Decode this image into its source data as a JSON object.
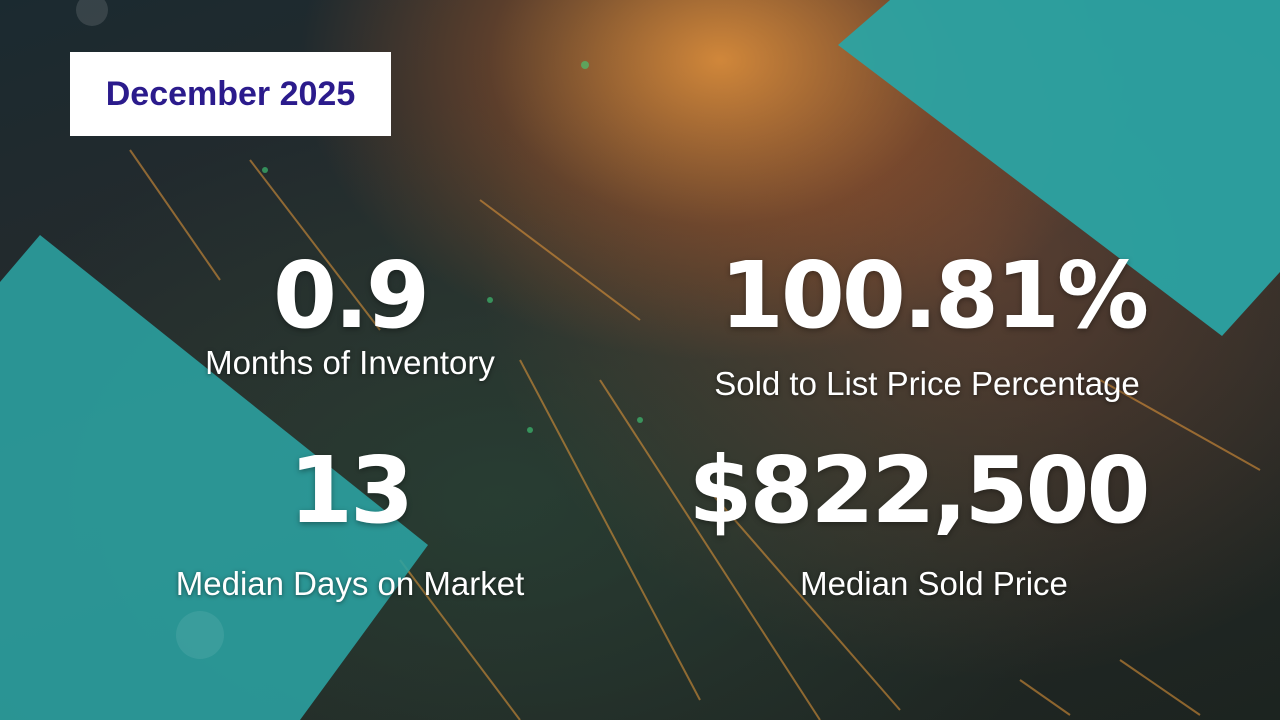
{
  "header": {
    "title": "December 2025"
  },
  "stats": [
    {
      "value": "0.9",
      "label": "Months of Inventory"
    },
    {
      "value": "100.81%",
      "label": "Sold to List Price Percentage"
    },
    {
      "value": "13",
      "label": "Median Days on Market"
    },
    {
      "value": "$822,500",
      "label": "Median Sold Price"
    }
  ]
}
